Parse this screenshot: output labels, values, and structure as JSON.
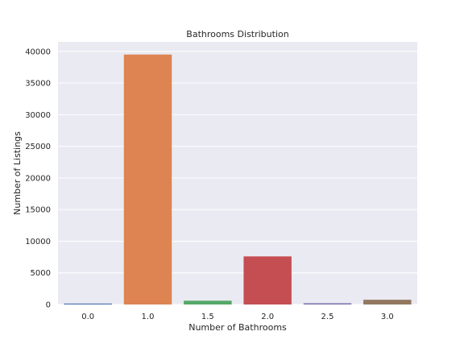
{
  "chart_data": {
    "type": "bar",
    "title": "Bathrooms Distribution",
    "xlabel": "Number of Bathrooms",
    "ylabel": "Number of Listings",
    "categories": [
      "0.0",
      "1.0",
      "1.5",
      "2.0",
      "2.5",
      "3.0"
    ],
    "values": [
      150,
      39500,
      600,
      7600,
      200,
      750
    ],
    "colors": [
      "#4c72b0",
      "#dd8452",
      "#55a868",
      "#c44e52",
      "#8172b3",
      "#937860"
    ],
    "yticks": [
      0,
      5000,
      10000,
      15000,
      20000,
      25000,
      30000,
      35000,
      40000
    ],
    "ylim": [
      0,
      41500
    ],
    "grid": true,
    "background": "#eaeaf2"
  }
}
